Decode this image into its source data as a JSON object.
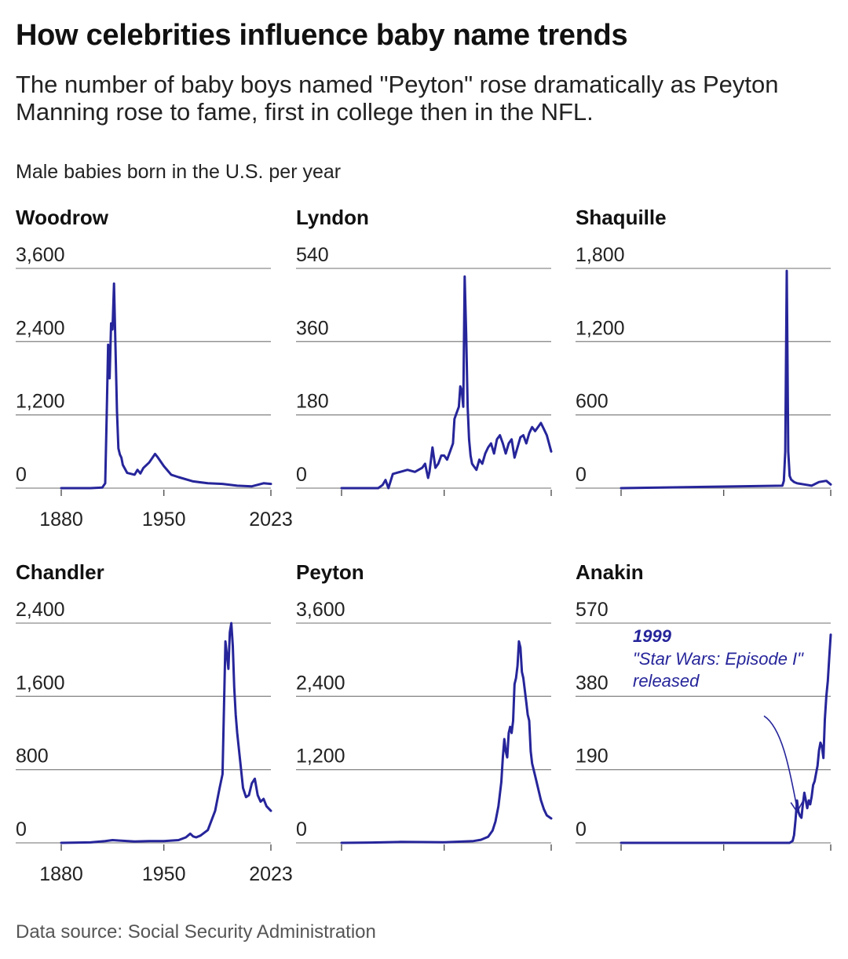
{
  "title": "How celebrities influence baby name trends",
  "subtitle": "The number of baby boys named \"Peyton\" rose dramatically as Peyton Manning rose to fame, first in college then in the NFL.",
  "units_label": "Male babies born in the U.S. per year",
  "source": "Data source: Social Security Administration",
  "line_color": "#26259a",
  "chart_data": [
    {
      "type": "line",
      "title": "Woodrow",
      "xlim": [
        1880,
        2023
      ],
      "ylim": [
        0,
        3600
      ],
      "yticks": [
        0,
        1200,
        2400,
        3600
      ],
      "ytick_labels": [
        "0",
        "1,200",
        "2,400",
        "3,600"
      ],
      "xticks": [
        1880,
        1950,
        2023
      ],
      "xtick_labels": [
        "1880",
        "1950",
        "2023"
      ],
      "x": [
        1880,
        1900,
        1908,
        1910,
        1911,
        1912,
        1913,
        1914,
        1915,
        1916,
        1917,
        1918,
        1919,
        1920,
        1921,
        1922,
        1925,
        1930,
        1932,
        1934,
        1936,
        1940,
        1944,
        1946,
        1950,
        1955,
        1960,
        1970,
        1980,
        1990,
        2000,
        2010,
        2018,
        2023
      ],
      "y": [
        0,
        0,
        10,
        80,
        1200,
        2350,
        1800,
        2700,
        2600,
        3350,
        2300,
        1250,
        650,
        550,
        500,
        380,
        250,
        220,
        300,
        240,
        330,
        420,
        560,
        500,
        360,
        220,
        180,
        110,
        80,
        70,
        40,
        30,
        80,
        70
      ]
    },
    {
      "type": "line",
      "title": "Lyndon",
      "xlim": [
        1880,
        2023
      ],
      "ylim": [
        0,
        540
      ],
      "yticks": [
        0,
        180,
        360,
        540
      ],
      "ytick_labels": [
        "0",
        "180",
        "360",
        "540"
      ],
      "xticks": [
        1880,
        1950,
        2023
      ],
      "x": [
        1880,
        1900,
        1905,
        1908,
        1910,
        1912,
        1915,
        1920,
        1925,
        1930,
        1935,
        1937,
        1939,
        1940,
        1942,
        1944,
        1946,
        1948,
        1950,
        1952,
        1954,
        1956,
        1957,
        1958,
        1959,
        1960,
        1961,
        1962,
        1963,
        1964,
        1965,
        1966,
        1967,
        1968,
        1969,
        1970,
        1972,
        1974,
        1976,
        1978,
        1980,
        1982,
        1984,
        1986,
        1988,
        1990,
        1992,
        1994,
        1996,
        1998,
        2000,
        2002,
        2004,
        2006,
        2008,
        2010,
        2012,
        2014,
        2016,
        2018,
        2020,
        2023
      ],
      "y": [
        0,
        0,
        0,
        8,
        20,
        0,
        35,
        40,
        45,
        40,
        50,
        60,
        25,
        40,
        100,
        50,
        60,
        80,
        80,
        70,
        90,
        110,
        170,
        180,
        190,
        200,
        250,
        240,
        200,
        520,
        380,
        200,
        120,
        80,
        60,
        55,
        45,
        70,
        60,
        85,
        100,
        110,
        85,
        120,
        130,
        110,
        85,
        110,
        120,
        75,
        100,
        125,
        130,
        110,
        135,
        150,
        140,
        150,
        160,
        145,
        130,
        90
      ]
    },
    {
      "type": "line",
      "title": "Shaquille",
      "xlim": [
        1880,
        2023
      ],
      "ylim": [
        0,
        1800
      ],
      "yticks": [
        0,
        600,
        1200,
        1800
      ],
      "ytick_labels": [
        "0",
        "600",
        "1,200",
        "1,800"
      ],
      "xticks": [
        1880,
        1950,
        2023
      ],
      "x": [
        1880,
        1990,
        1991,
        1992,
        1993,
        1994,
        1995,
        1996,
        1998,
        2000,
        2005,
        2010,
        2015,
        2020,
        2023
      ],
      "y": [
        0,
        20,
        60,
        300,
        1780,
        300,
        100,
        70,
        50,
        40,
        30,
        20,
        50,
        60,
        30
      ]
    },
    {
      "type": "line",
      "title": "Chandler",
      "xlim": [
        1880,
        2023
      ],
      "ylim": [
        0,
        2400
      ],
      "yticks": [
        0,
        800,
        1600,
        2400
      ],
      "ytick_labels": [
        "0",
        "800",
        "1,600",
        "2,400"
      ],
      "xticks": [
        1880,
        1950,
        2023
      ],
      "xtick_labels": [
        "1880",
        "1950",
        "2023"
      ],
      "x": [
        1880,
        1900,
        1910,
        1915,
        1920,
        1930,
        1940,
        1950,
        1955,
        1960,
        1965,
        1968,
        1970,
        1972,
        1975,
        1980,
        1985,
        1988,
        1990,
        1992,
        1994,
        1995,
        1996,
        1997,
        1998,
        1999,
        2000,
        2002,
        2004,
        2006,
        2008,
        2010,
        2012,
        2014,
        2016,
        2018,
        2020,
        2023
      ],
      "y": [
        0,
        5,
        20,
        30,
        25,
        15,
        20,
        20,
        25,
        30,
        60,
        100,
        70,
        60,
        80,
        140,
        350,
        600,
        750,
        2200,
        1900,
        2300,
        2400,
        2150,
        1700,
        1400,
        1200,
        900,
        600,
        500,
        520,
        650,
        700,
        520,
        450,
        480,
        400,
        350
      ]
    },
    {
      "type": "line",
      "title": "Peyton",
      "xlim": [
        1880,
        2023
      ],
      "ylim": [
        0,
        3600
      ],
      "yticks": [
        0,
        1200,
        2400,
        3600
      ],
      "ytick_labels": [
        "0",
        "1,200",
        "2,400",
        "3,600"
      ],
      "xticks": [
        1880,
        1950,
        2023
      ],
      "x": [
        1880,
        1900,
        1920,
        1950,
        1970,
        1975,
        1980,
        1983,
        1985,
        1987,
        1989,
        1990,
        1991,
        1992,
        1993,
        1994,
        1995,
        1996,
        1997,
        1998,
        1999,
        2000,
        2001,
        2002,
        2003,
        2004,
        2005,
        2006,
        2007,
        2008,
        2009,
        2010,
        2012,
        2014,
        2016,
        2018,
        2020,
        2023
      ],
      "y": [
        0,
        5,
        15,
        10,
        30,
        50,
        100,
        200,
        350,
        600,
        1000,
        1400,
        1700,
        1500,
        1400,
        1800,
        1900,
        1800,
        2000,
        2600,
        2700,
        2900,
        3300,
        3200,
        2800,
        2700,
        2500,
        2300,
        2100,
        2000,
        1500,
        1300,
        1100,
        900,
        700,
        550,
        450,
        400
      ]
    },
    {
      "type": "line",
      "title": "Anakin",
      "xlim": [
        1880,
        2023
      ],
      "ylim": [
        0,
        570
      ],
      "yticks": [
        0,
        190,
        380,
        570
      ],
      "ytick_labels": [
        "0",
        "190",
        "380",
        "570"
      ],
      "xticks": [
        1880,
        1950,
        2023
      ],
      "x": [
        1880,
        1990,
        1995,
        1997,
        1998,
        1999,
        2000,
        2001,
        2002,
        2003,
        2004,
        2005,
        2006,
        2007,
        2008,
        2009,
        2010,
        2011,
        2012,
        2013,
        2014,
        2015,
        2016,
        2017,
        2018,
        2019,
        2020,
        2021,
        2022,
        2023
      ],
      "y": [
        0,
        0,
        0,
        5,
        20,
        60,
        110,
        80,
        70,
        65,
        100,
        130,
        110,
        90,
        110,
        100,
        120,
        150,
        160,
        180,
        200,
        240,
        260,
        250,
        220,
        320,
        380,
        420,
        480,
        540
      ],
      "annotation": {
        "year_label": "1999",
        "text": [
          "\"Star Wars: Episode I\"",
          "released"
        ],
        "x": 1999,
        "y": 60
      }
    }
  ]
}
